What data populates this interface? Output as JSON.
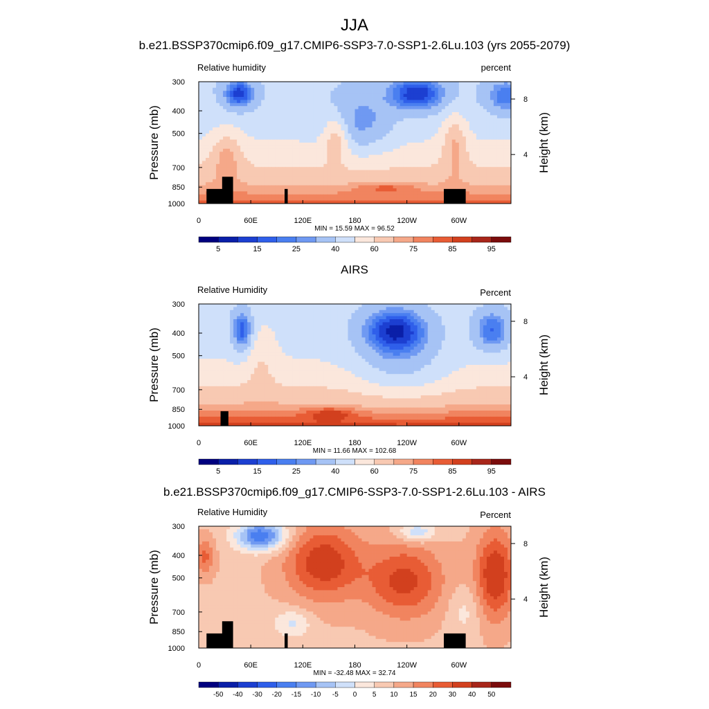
{
  "figure": {
    "title": "JJA"
  },
  "chart_data": [
    {
      "type": "heatmap",
      "title": "b.e21.BSSP370cmip6.f09_g17.CMIP6-SSP3-7.0-SSP1-2.6Lu.103 (yrs 2055-2079)",
      "variable": "Relative humidity",
      "units": "percent",
      "ylabel": "Pressure (mb)",
      "y2label": "Height (km)",
      "x_ticks": [
        "0",
        "60E",
        "120E",
        "180",
        "120W",
        "60W"
      ],
      "y_ticks": [
        "300",
        "400",
        "500",
        "700",
        "850",
        "1000"
      ],
      "y2_ticks": [
        "8",
        "4"
      ],
      "stats": "MIN =  15.59  MAX =  96.52",
      "min": 15.59,
      "max": 96.52,
      "colorbar_labels": [
        "5",
        "15",
        "25",
        "40",
        "60",
        "75",
        "85",
        "95"
      ],
      "colorbar_colors": [
        "#00007f",
        "#0a1fa8",
        "#1c3fd1",
        "#2f5fea",
        "#4a7ff0",
        "#6f99f2",
        "#a6c3f5",
        "#cfe0fa",
        "#fbe7dc",
        "#f8c9b2",
        "#f5a889",
        "#f1845f",
        "#e85c35",
        "#d2401e",
        "#a8261a",
        "#7b0c0c"
      ],
      "contour_levels": [
        5,
        10,
        15,
        20,
        25,
        30,
        40,
        50,
        60,
        70,
        75,
        80,
        85,
        90,
        95
      ]
    },
    {
      "type": "heatmap",
      "title": "AIRS",
      "variable": "Relative Humidity",
      "units": "Percent",
      "ylabel": "Pressure (mb)",
      "y2label": "Height (km)",
      "x_ticks": [
        "0",
        "60E",
        "120E",
        "180",
        "120W",
        "60W"
      ],
      "y_ticks": [
        "300",
        "400",
        "500",
        "700",
        "850",
        "1000"
      ],
      "y2_ticks": [
        "8",
        "4"
      ],
      "stats": "MIN =  11.66  MAX = 102.68",
      "min": 11.66,
      "max": 102.68,
      "colorbar_labels": [
        "5",
        "15",
        "25",
        "40",
        "60",
        "75",
        "85",
        "95"
      ],
      "colorbar_colors": [
        "#00007f",
        "#0a1fa8",
        "#1c3fd1",
        "#2f5fea",
        "#4a7ff0",
        "#6f99f2",
        "#a6c3f5",
        "#cfe0fa",
        "#fbe7dc",
        "#f8c9b2",
        "#f5a889",
        "#f1845f",
        "#e85c35",
        "#d2401e",
        "#a8261a",
        "#7b0c0c"
      ],
      "contour_levels": [
        5,
        10,
        15,
        20,
        25,
        30,
        40,
        50,
        60,
        70,
        75,
        80,
        85,
        90,
        95
      ]
    },
    {
      "type": "heatmap",
      "title": "b.e21.BSSP370cmip6.f09_g17.CMIP6-SSP3-7.0-SSP1-2.6Lu.103 - AIRS",
      "variable": "Relative Humidity",
      "units": "Percent",
      "ylabel": "Pressure (mb)",
      "y2label": "Height (km)",
      "x_ticks": [
        "0",
        "60E",
        "120E",
        "180",
        "120W",
        "60W"
      ],
      "y_ticks": [
        "300",
        "400",
        "500",
        "700",
        "850",
        "1000"
      ],
      "y2_ticks": [
        "8",
        "4"
      ],
      "stats": "MIN = -32.48  MAX =  32.74",
      "min": -32.48,
      "max": 32.74,
      "colorbar_labels": [
        "-50",
        "-40",
        "-30",
        "-20",
        "-15",
        "-10",
        "-5",
        "0",
        "5",
        "10",
        "15",
        "20",
        "30",
        "40",
        "50"
      ],
      "colorbar_colors": [
        "#00007f",
        "#0a1fa8",
        "#1c3fd1",
        "#2f5fea",
        "#4a7ff0",
        "#6f99f2",
        "#a6c3f5",
        "#cfe0fa",
        "#fbe7dc",
        "#f8c9b2",
        "#f5a889",
        "#f1845f",
        "#e85c35",
        "#d2401e",
        "#a8261a",
        "#7b0c0c"
      ],
      "contour_levels": [
        -60,
        -50,
        -40,
        -30,
        -20,
        -15,
        -10,
        -5,
        0,
        5,
        10,
        15,
        20,
        30,
        40,
        50,
        60
      ]
    }
  ]
}
